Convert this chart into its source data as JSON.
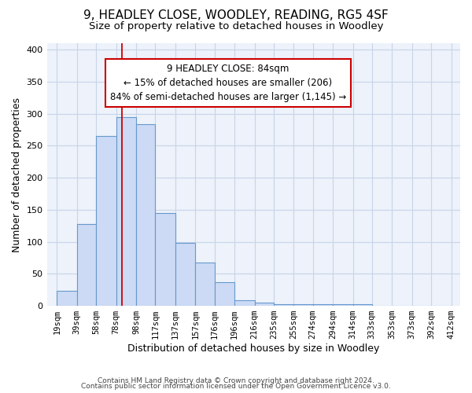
{
  "title": "9, HEADLEY CLOSE, WOODLEY, READING, RG5 4SF",
  "subtitle": "Size of property relative to detached houses in Woodley",
  "xlabel": "Distribution of detached houses by size in Woodley",
  "ylabel": "Number of detached properties",
  "bar_left_edges": [
    19,
    39,
    58,
    78,
    98,
    117,
    137,
    157,
    176,
    196,
    216,
    235,
    255,
    274,
    294,
    314,
    333,
    353,
    373,
    392
  ],
  "bar_widths": [
    20,
    19,
    20,
    20,
    19,
    20,
    20,
    19,
    20,
    20,
    19,
    20,
    19,
    20,
    20,
    19,
    20,
    20,
    19,
    20
  ],
  "bar_heights": [
    23,
    128,
    265,
    295,
    283,
    145,
    98,
    68,
    37,
    9,
    5,
    2,
    2,
    2,
    2,
    2,
    0,
    0,
    0,
    0
  ],
  "bar_color": "#ccdaf5",
  "bar_edge_color": "#6699cc",
  "tick_labels": [
    "19sqm",
    "39sqm",
    "58sqm",
    "78sqm",
    "98sqm",
    "117sqm",
    "137sqm",
    "157sqm",
    "176sqm",
    "196sqm",
    "216sqm",
    "235sqm",
    "255sqm",
    "274sqm",
    "294sqm",
    "314sqm",
    "333sqm",
    "353sqm",
    "373sqm",
    "392sqm",
    "412sqm"
  ],
  "tick_positions": [
    19,
    39,
    58,
    78,
    98,
    117,
    137,
    157,
    176,
    196,
    216,
    235,
    255,
    274,
    294,
    314,
    333,
    353,
    373,
    392,
    412
  ],
  "property_line_x": 84,
  "property_line_color": "#cc0000",
  "annotation_line1": "9 HEADLEY CLOSE: 84sqm",
  "annotation_line2": "← 15% of detached houses are smaller (206)",
  "annotation_line3": "84% of semi-detached houses are larger (1,145) →",
  "ylim": [
    0,
    410
  ],
  "xlim": [
    9,
    421
  ],
  "bg_color": "#edf2fb",
  "grid_color": "#c8d4e8",
  "footer_line1": "Contains HM Land Registry data © Crown copyright and database right 2024.",
  "footer_line2": "Contains public sector information licensed under the Open Government Licence v3.0.",
  "title_fontsize": 11,
  "subtitle_fontsize": 9.5,
  "annotation_fontsize": 8.5,
  "axis_label_fontsize": 9,
  "tick_fontsize": 7.5,
  "footer_fontsize": 6.5,
  "ylabel_fontsize": 9
}
